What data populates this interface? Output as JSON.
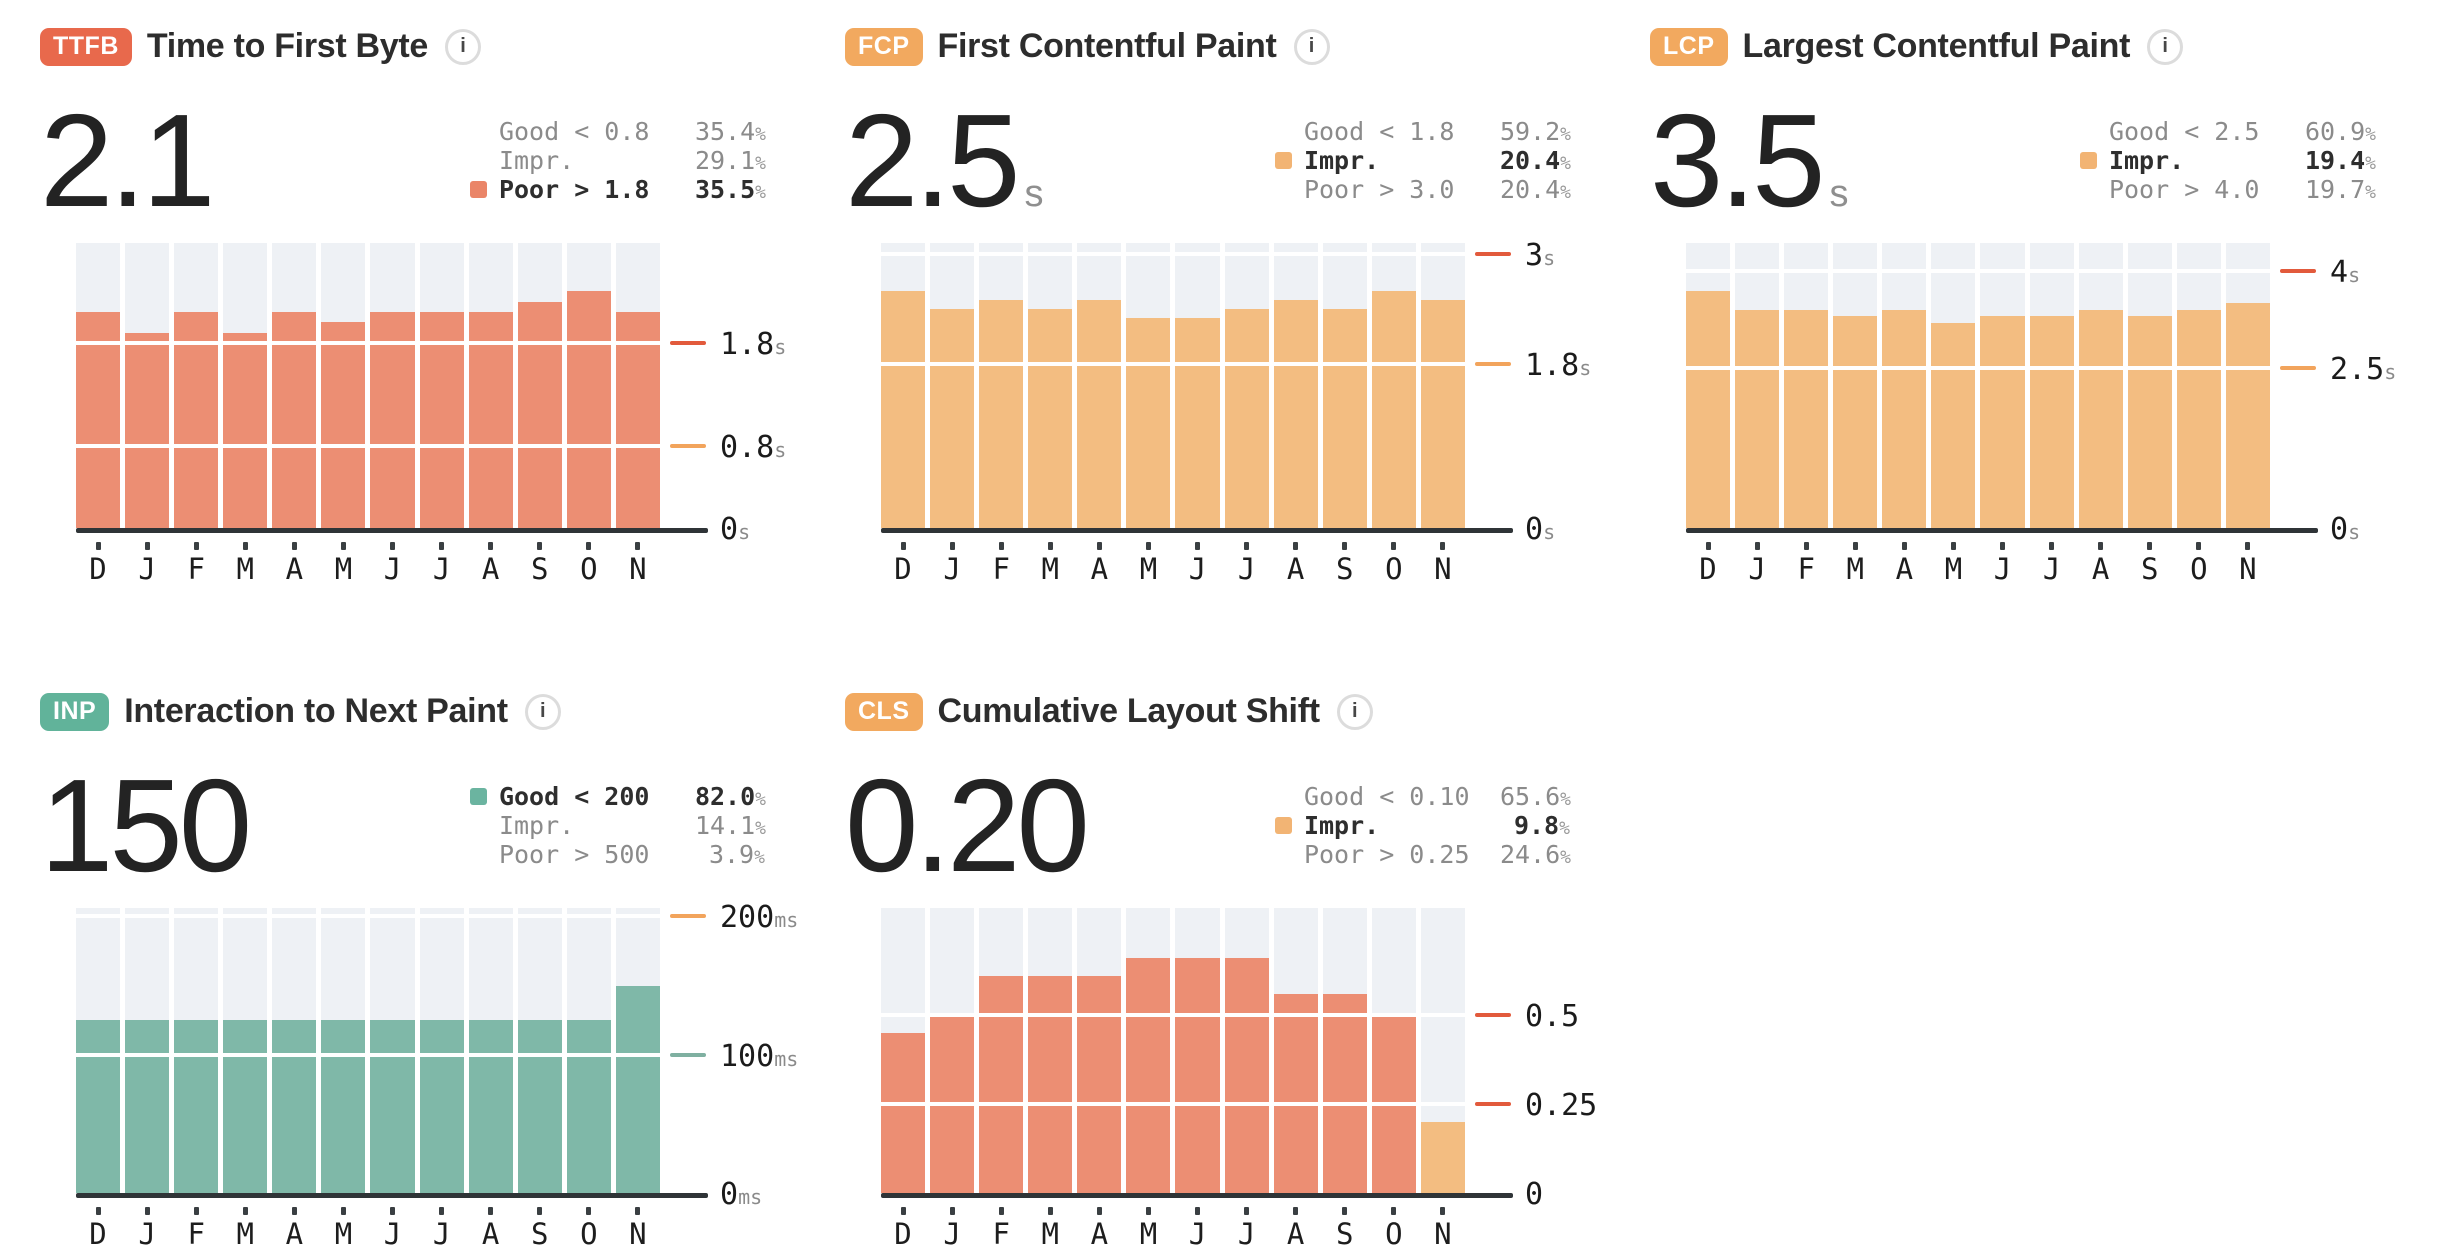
{
  "colors": {
    "good": "#7FB8A8",
    "improvement": "#F3BD81",
    "poor": "#EC8E73",
    "column_bg": "#EEF1F5",
    "tick_red": "#E25A3C",
    "tick_orange": "#F2A45C",
    "tick_teal": "#7FB0A1",
    "axis": "#2F3437"
  },
  "months": [
    "D",
    "J",
    "F",
    "M",
    "A",
    "M",
    "J",
    "J",
    "A",
    "S",
    "O",
    "N"
  ],
  "panels": [
    {
      "id": "ttfb",
      "badge": "TTFB",
      "badge_color": "#E8694C",
      "title": "Time to First Byte",
      "info_icon": "i",
      "value": "2.1",
      "unit": "",
      "legend": [
        {
          "label": "Good < 0.8",
          "value": "35.4",
          "suffix": "%",
          "highlight": false,
          "marker": null
        },
        {
          "label": "Impr.",
          "value": "29.1",
          "suffix": "%",
          "highlight": false,
          "marker": null
        },
        {
          "label": "Poor > 1.8",
          "value": "35.5",
          "suffix": "%",
          "highlight": true,
          "marker": "#EA8568"
        }
      ]
    },
    {
      "id": "fcp",
      "badge": "FCP",
      "badge_color": "#F2A95F",
      "title": "First Contentful Paint",
      "info_icon": "i",
      "value": "2.5",
      "unit": "s",
      "legend": [
        {
          "label": "Good < 1.8",
          "value": "59.2",
          "suffix": "%",
          "highlight": false,
          "marker": null
        },
        {
          "label": "Impr.",
          "value": "20.4",
          "suffix": "%",
          "highlight": true,
          "marker": "#F2B474"
        },
        {
          "label": "Poor > 3.0",
          "value": "20.4",
          "suffix": "%",
          "highlight": false,
          "marker": null
        }
      ]
    },
    {
      "id": "lcp",
      "badge": "LCP",
      "badge_color": "#F2A95F",
      "title": "Largest Contentful Paint",
      "info_icon": "i",
      "value": "3.5",
      "unit": "s",
      "legend": [
        {
          "label": "Good < 2.5",
          "value": "60.9",
          "suffix": "%",
          "highlight": false,
          "marker": null
        },
        {
          "label": "Impr.",
          "value": "19.4",
          "suffix": "%",
          "highlight": true,
          "marker": "#F2B474"
        },
        {
          "label": "Poor > 4.0",
          "value": "19.7",
          "suffix": "%",
          "highlight": false,
          "marker": null
        }
      ]
    },
    {
      "id": "inp",
      "badge": "INP",
      "badge_color": "#61B39A",
      "title": "Interaction to Next Paint",
      "info_icon": "i",
      "value": "150",
      "unit": "",
      "legend": [
        {
          "label": "Good < 200",
          "value": "82.0",
          "suffix": "%",
          "highlight": true,
          "marker": "#6BB4A0"
        },
        {
          "label": "Impr.",
          "value": "14.1",
          "suffix": "%",
          "highlight": false,
          "marker": null
        },
        {
          "label": "Poor > 500",
          "value": "3.9",
          "suffix": "%",
          "highlight": false,
          "marker": null
        }
      ]
    },
    {
      "id": "cls",
      "badge": "CLS",
      "badge_color": "#F2A95F",
      "title": "Cumulative Layout Shift",
      "info_icon": "i",
      "value": "0.20",
      "unit": "",
      "legend": [
        {
          "label": "Good < 0.10",
          "value": "65.6",
          "suffix": "%",
          "highlight": false,
          "marker": null
        },
        {
          "label": "Impr.",
          "value": "9.8",
          "suffix": "%",
          "highlight": true,
          "marker": "#F2B474"
        },
        {
          "label": "Poor > 0.25",
          "value": "24.6",
          "suffix": "%",
          "highlight": false,
          "marker": null
        }
      ]
    }
  ],
  "chart_data": [
    {
      "id": "ttfb",
      "type": "bar",
      "title": "Time to First Byte monthly p75 (s)",
      "categories": [
        "D",
        "J",
        "F",
        "M",
        "A",
        "M",
        "J",
        "J",
        "A",
        "S",
        "O",
        "N"
      ],
      "values": [
        2.1,
        1.9,
        2.1,
        1.9,
        2.1,
        2.0,
        2.1,
        2.1,
        2.1,
        2.2,
        2.3,
        2.1
      ],
      "unit": "s",
      "ylim": [
        0,
        2.77
      ],
      "rating": {
        "good_lt": 0.8,
        "poor_gt": 1.8
      },
      "ticks": [
        {
          "value": 1.8,
          "label": "1.8",
          "suffix": "s",
          "color": "#E25A3C"
        },
        {
          "value": 0.8,
          "label": "0.8",
          "suffix": "s",
          "color": "#F2A45C"
        },
        {
          "value": 0,
          "label": "0",
          "suffix": "s",
          "color": null
        }
      ]
    },
    {
      "id": "fcp",
      "type": "bar",
      "title": "First Contentful Paint monthly p75 (s)",
      "categories": [
        "D",
        "J",
        "F",
        "M",
        "A",
        "M",
        "J",
        "J",
        "A",
        "S",
        "O",
        "N"
      ],
      "values": [
        2.6,
        2.4,
        2.5,
        2.4,
        2.5,
        2.3,
        2.3,
        2.4,
        2.5,
        2.4,
        2.6,
        2.5
      ],
      "unit": "s",
      "ylim": [
        0,
        3.12
      ],
      "rating": {
        "good_lt": 1.8,
        "poor_gt": 3.0
      },
      "ticks": [
        {
          "value": 3,
          "label": "3",
          "suffix": "s",
          "color": "#E25A3C"
        },
        {
          "value": 1.8,
          "label": "1.8",
          "suffix": "s",
          "color": "#F2A45C"
        },
        {
          "value": 0,
          "label": "0",
          "suffix": "s",
          "color": null
        }
      ]
    },
    {
      "id": "lcp",
      "type": "bar",
      "title": "Largest Contentful Paint monthly p75 (s)",
      "categories": [
        "D",
        "J",
        "F",
        "M",
        "A",
        "M",
        "J",
        "J",
        "A",
        "S",
        "O",
        "N"
      ],
      "values": [
        3.7,
        3.4,
        3.4,
        3.3,
        3.4,
        3.2,
        3.3,
        3.3,
        3.4,
        3.3,
        3.4,
        3.5
      ],
      "unit": "s",
      "ylim": [
        0,
        4.44
      ],
      "rating": {
        "good_lt": 2.5,
        "poor_gt": 4.0
      },
      "ticks": [
        {
          "value": 4,
          "label": "4",
          "suffix": "s",
          "color": "#E25A3C"
        },
        {
          "value": 2.5,
          "label": "2.5",
          "suffix": "s",
          "color": "#F2A45C"
        },
        {
          "value": 0,
          "label": "0",
          "suffix": "s",
          "color": null
        }
      ]
    },
    {
      "id": "inp",
      "type": "bar",
      "title": "Interaction to Next Paint monthly p75 (ms)",
      "categories": [
        "D",
        "J",
        "F",
        "M",
        "A",
        "M",
        "J",
        "J",
        "A",
        "S",
        "O",
        "N"
      ],
      "values": [
        125,
        125,
        125,
        125,
        125,
        125,
        125,
        125,
        125,
        125,
        125,
        150
      ],
      "unit": "ms",
      "ylim": [
        0,
        206
      ],
      "rating": {
        "good_lt": 200,
        "poor_gt": 500
      },
      "ticks": [
        {
          "value": 200,
          "label": "200",
          "suffix": "ms",
          "color": "#F2A45C"
        },
        {
          "value": 100,
          "label": "100",
          "suffix": "ms",
          "color": "#7FB0A1"
        },
        {
          "value": 0,
          "label": "0",
          "suffix": "ms",
          "color": null
        }
      ]
    },
    {
      "id": "cls",
      "type": "bar",
      "title": "Cumulative Layout Shift monthly p75",
      "categories": [
        "D",
        "J",
        "F",
        "M",
        "A",
        "M",
        "J",
        "J",
        "A",
        "S",
        "O",
        "N"
      ],
      "values": [
        0.45,
        0.5,
        0.61,
        0.61,
        0.61,
        0.66,
        0.66,
        0.66,
        0.56,
        0.56,
        0.5,
        0.2
      ],
      "unit": "",
      "ylim": [
        0,
        0.8
      ],
      "rating": {
        "good_lt": 0.1,
        "poor_gt": 0.25
      },
      "ticks": [
        {
          "value": 0.5,
          "label": "0.5",
          "suffix": "",
          "color": "#E25A3C"
        },
        {
          "value": 0.25,
          "label": "0.25",
          "suffix": "",
          "color": "#E25A3C"
        },
        {
          "value": 0,
          "label": "0",
          "suffix": "",
          "color": null
        }
      ]
    }
  ]
}
